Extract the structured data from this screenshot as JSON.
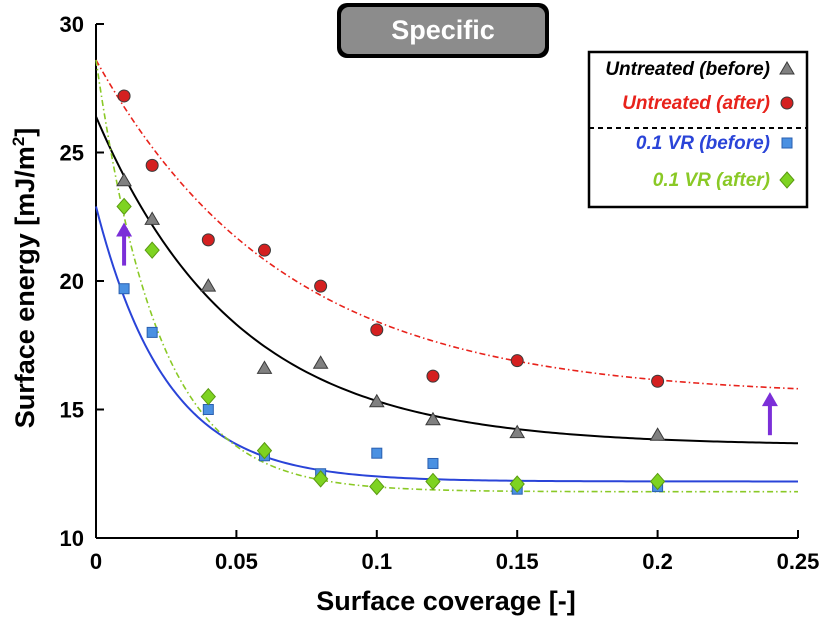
{
  "chart_data": {
    "type": "scatter",
    "title": "Specific",
    "xlabel": "Surface coverage [-]",
    "ylabel": "Surface energy [mJ/m²]",
    "ylabel_main": "Surface energy [mJ/m",
    "ylabel_sup": "2",
    "ylabel_close": "]",
    "xlim": [
      0,
      0.25
    ],
    "ylim": [
      10,
      30
    ],
    "xticks": [
      0,
      0.05,
      0.1,
      0.15,
      0.2,
      0.25
    ],
    "xtick_labels": [
      "0",
      "0.05",
      "0.1",
      "0.15",
      "0.2",
      "0.25"
    ],
    "yticks": [
      10,
      15,
      20,
      25,
      30
    ],
    "ytick_labels": [
      "10",
      "15",
      "20",
      "25",
      "30"
    ],
    "legend_position": "top-right",
    "series": [
      {
        "name": "Untreated (before)",
        "color": "#000000",
        "marker_color": "#808080",
        "marker": "triangle",
        "line_style": "solid",
        "points": [
          [
            0.01,
            23.9
          ],
          [
            0.02,
            22.4
          ],
          [
            0.04,
            19.8
          ],
          [
            0.06,
            16.6
          ],
          [
            0.08,
            16.8
          ],
          [
            0.1,
            15.3
          ],
          [
            0.12,
            14.6
          ],
          [
            0.15,
            14.1
          ],
          [
            0.2,
            14.0
          ]
        ],
        "fit": {
          "y0": 26.4,
          "asymptote": 13.6,
          "k": 20
        }
      },
      {
        "name": "Untreated (after)",
        "color": "#e8221b",
        "marker_color": "#d42020",
        "marker": "circle",
        "line_style": "dashdot",
        "points": [
          [
            0.01,
            27.2
          ],
          [
            0.02,
            24.5
          ],
          [
            0.04,
            21.6
          ],
          [
            0.06,
            21.2
          ],
          [
            0.08,
            19.8
          ],
          [
            0.1,
            18.1
          ],
          [
            0.12,
            16.3
          ],
          [
            0.15,
            16.9
          ],
          [
            0.2,
            16.1
          ]
        ],
        "fit": {
          "y0": 28.6,
          "asymptote": 15.5,
          "k": 15
        }
      },
      {
        "name": "0.1 VR (before)",
        "color": "#2a44d8",
        "marker_color": "#4a90e2",
        "marker": "square",
        "line_style": "solid",
        "points": [
          [
            0.01,
            19.7
          ],
          [
            0.02,
            18.0
          ],
          [
            0.04,
            15.0
          ],
          [
            0.06,
            13.2
          ],
          [
            0.08,
            12.5
          ],
          [
            0.1,
            13.3
          ],
          [
            0.12,
            12.9
          ],
          [
            0.15,
            11.9
          ],
          [
            0.2,
            12.0
          ]
        ],
        "fit": {
          "y0": 22.9,
          "asymptote": 12.2,
          "k": 40
        }
      },
      {
        "name": "0.1 VR (after)",
        "color": "#8ac926",
        "marker_color": "#7ed321",
        "marker": "diamond",
        "line_style": "dashdot",
        "points": [
          [
            0.01,
            22.9
          ],
          [
            0.02,
            21.2
          ],
          [
            0.04,
            15.5
          ],
          [
            0.06,
            13.4
          ],
          [
            0.08,
            12.3
          ],
          [
            0.1,
            12.0
          ],
          [
            0.12,
            12.2
          ],
          [
            0.15,
            12.1
          ],
          [
            0.2,
            12.2
          ]
        ],
        "fit": {
          "y0": 28.6,
          "asymptote": 11.8,
          "k": 45
        }
      }
    ],
    "annotations": [
      {
        "type": "arrow-up",
        "color": "#7b2fd8",
        "x": 0.01,
        "y_from": 20.6,
        "y_to": 22.2
      },
      {
        "type": "arrow-up",
        "color": "#7b2fd8",
        "x": 0.24,
        "y_from": 14.0,
        "y_to": 15.6
      }
    ]
  }
}
